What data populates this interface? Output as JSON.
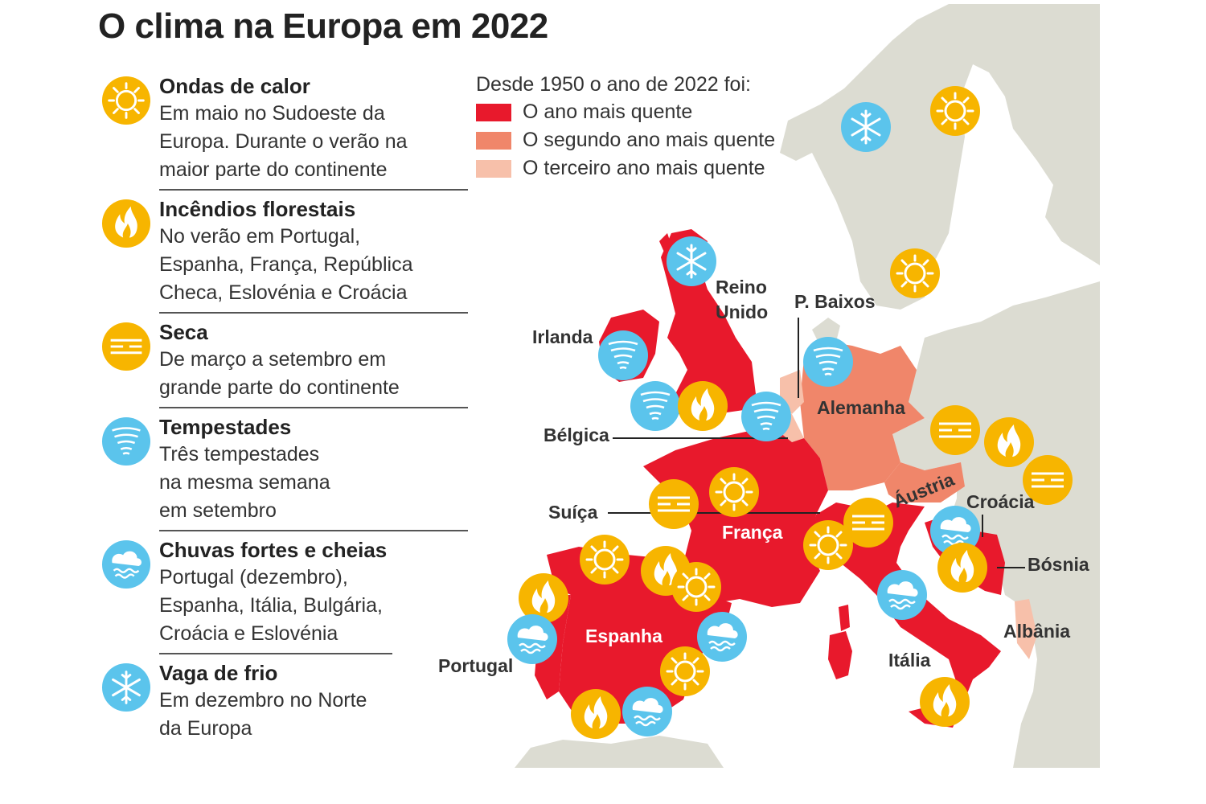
{
  "title": "O clima na Europa em 2022",
  "events": [
    {
      "icon": "sun-icon",
      "title": "Ondas de calor",
      "desc": "Em maio no Sudoeste da\nEuropa. Durante o verão na\nmaior parte do continente"
    },
    {
      "icon": "fire-icon",
      "title": "Incêndios florestais",
      "desc": "No verão em Portugal,\nEspanha, França, República\nCheca, Eslovénia e Croácia"
    },
    {
      "icon": "drought-icon",
      "title": "Seca",
      "desc": "De março a setembro em\ngrande parte do continente"
    },
    {
      "icon": "storm-icon",
      "title": "Tempestades",
      "desc": "Três tempestades\nna mesma semana\nem setembro"
    },
    {
      "icon": "rain-icon",
      "title": "Chuvas fortes e cheias",
      "desc": "Portugal (dezembro),\nEspanha, Itália, Bulgária,\nCroácia e Eslovénia"
    },
    {
      "icon": "snowflake-icon",
      "title": "Vaga de frio",
      "desc": "Em dezembro no Norte\nda Europa"
    }
  ],
  "heat_legend": {
    "title": "Desde 1950 o ano de 2022 foi:",
    "items": [
      {
        "label": "O ano mais quente",
        "color": "#e8192c"
      },
      {
        "label": "O segundo ano mais quente",
        "color": "#f0866a"
      },
      {
        "label": "O terceiro ano mais quente",
        "color": "#f7c0aa"
      }
    ]
  },
  "colors": {
    "sun_icon": "#f7b500",
    "blue_icon": "#5bc4ec",
    "land": "#dcdcd2"
  },
  "labels": {
    "reino_unido": [
      "Reino",
      "Unido"
    ],
    "irlanda": "Irlanda",
    "pbaixos": "P. Baixos",
    "alemanha": "Alemanha",
    "belgica": "Bélgica",
    "suica": "Suíça",
    "franca": "França",
    "austria": "Áustria",
    "croacia": "Croácia",
    "bosnia": "Bósnia",
    "albania": "Albânia",
    "espanha": "Espanha",
    "portugal": "Portugal",
    "italia": "Itália"
  }
}
